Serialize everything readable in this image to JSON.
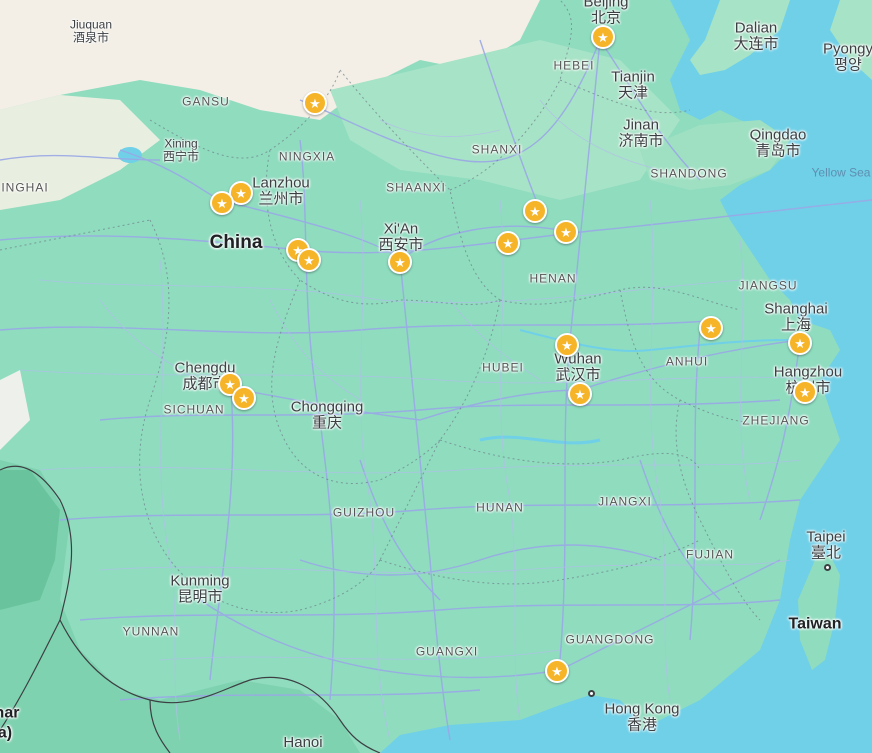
{
  "map": {
    "land_color": "#8fdcbf",
    "desert_color": "#f3efe6",
    "sea_color": "#6fd0e8",
    "road_color": "#9aa8e6",
    "marker_color": "#f6b428",
    "marker_icon": "star-icon",
    "cities": {
      "beijing": {
        "en": "Beijing",
        "zh": "北京"
      },
      "dalian": {
        "en": "Dalian",
        "zh": "大连市"
      },
      "pyongyang": {
        "en": "Pyongy",
        "zh": "평양"
      },
      "tianjin": {
        "en": "Tianjin",
        "zh": "天津"
      },
      "jinan": {
        "en": "Jinan",
        "zh": "济南市"
      },
      "qingdao": {
        "en": "Qingdao",
        "zh": "青岛市"
      },
      "jiuquan": {
        "en": "Jiuquan",
        "zh": "酒泉市"
      },
      "xining": {
        "en": "Xining",
        "zh": "西宁市"
      },
      "lanzhou": {
        "en": "Lanzhou",
        "zh": "兰州市"
      },
      "xian": {
        "en": "Xi'An",
        "zh": "西安市"
      },
      "shanghai": {
        "en": "Shanghai",
        "zh": "上海"
      },
      "hangzhou": {
        "en": "Hangzhou",
        "zh": "杭州市"
      },
      "wuhan": {
        "en": "Wuhan",
        "zh": "武汉市"
      },
      "chengdu": {
        "en": "Chengdu",
        "zh": "成都市"
      },
      "chongqing": {
        "en": "Chongqing",
        "zh": "重庆"
      },
      "taipei": {
        "en": "Taipei",
        "zh": "臺北"
      },
      "kunming": {
        "en": "Kunming",
        "zh": "昆明市"
      },
      "hongkong": {
        "en": "Hong Kong",
        "zh": "香港"
      },
      "hanoi": {
        "en": "Hanoi",
        "zh": ""
      }
    },
    "provinces": {
      "gansu": "GANSU",
      "ningxia": "NINGXIA",
      "shanxi": "SHANXI",
      "shaanxi": "SHAANXI",
      "hebei": "HEBEI",
      "shandong": "SHANDONG",
      "qinghai": "INGHAI",
      "henan": "HENAN",
      "jiangsu": "JIANGSU",
      "anhui": "ANHUI",
      "hubei": "HUBEI",
      "zhejiang": "ZHEJIANG",
      "sichuan": "SICHUAN",
      "guizhou": "GUIZHOU",
      "hunan": "HUNAN",
      "jiangxi": "JIANGXI",
      "fujian": "FUJIAN",
      "yunnan": "YUNNAN",
      "guangdong": "GUANGDONG",
      "guangxi": "GUANGXI"
    },
    "countries": {
      "china": "China",
      "taiwan": "Taiwan",
      "edge_fragment_1": "nar",
      "edge_fragment_2": "a)"
    },
    "water": {
      "yellow_sea": "Yellow Sea"
    },
    "markers": [
      {
        "id": "marker-beijing"
      },
      {
        "id": "marker-ningxia-north"
      },
      {
        "id": "marker-lanzhou-1"
      },
      {
        "id": "marker-lanzhou-2"
      },
      {
        "id": "marker-gansu-south-1"
      },
      {
        "id": "marker-gansu-south-2"
      },
      {
        "id": "marker-xian"
      },
      {
        "id": "marker-shanxi-south"
      },
      {
        "id": "marker-henan-west"
      },
      {
        "id": "marker-henan-east"
      },
      {
        "id": "marker-anhui"
      },
      {
        "id": "marker-shanghai"
      },
      {
        "id": "marker-hangzhou"
      },
      {
        "id": "marker-wuhan-1"
      },
      {
        "id": "marker-wuhan-2"
      },
      {
        "id": "marker-chengdu-1"
      },
      {
        "id": "marker-chengdu-2"
      },
      {
        "id": "marker-guangdong"
      }
    ]
  }
}
